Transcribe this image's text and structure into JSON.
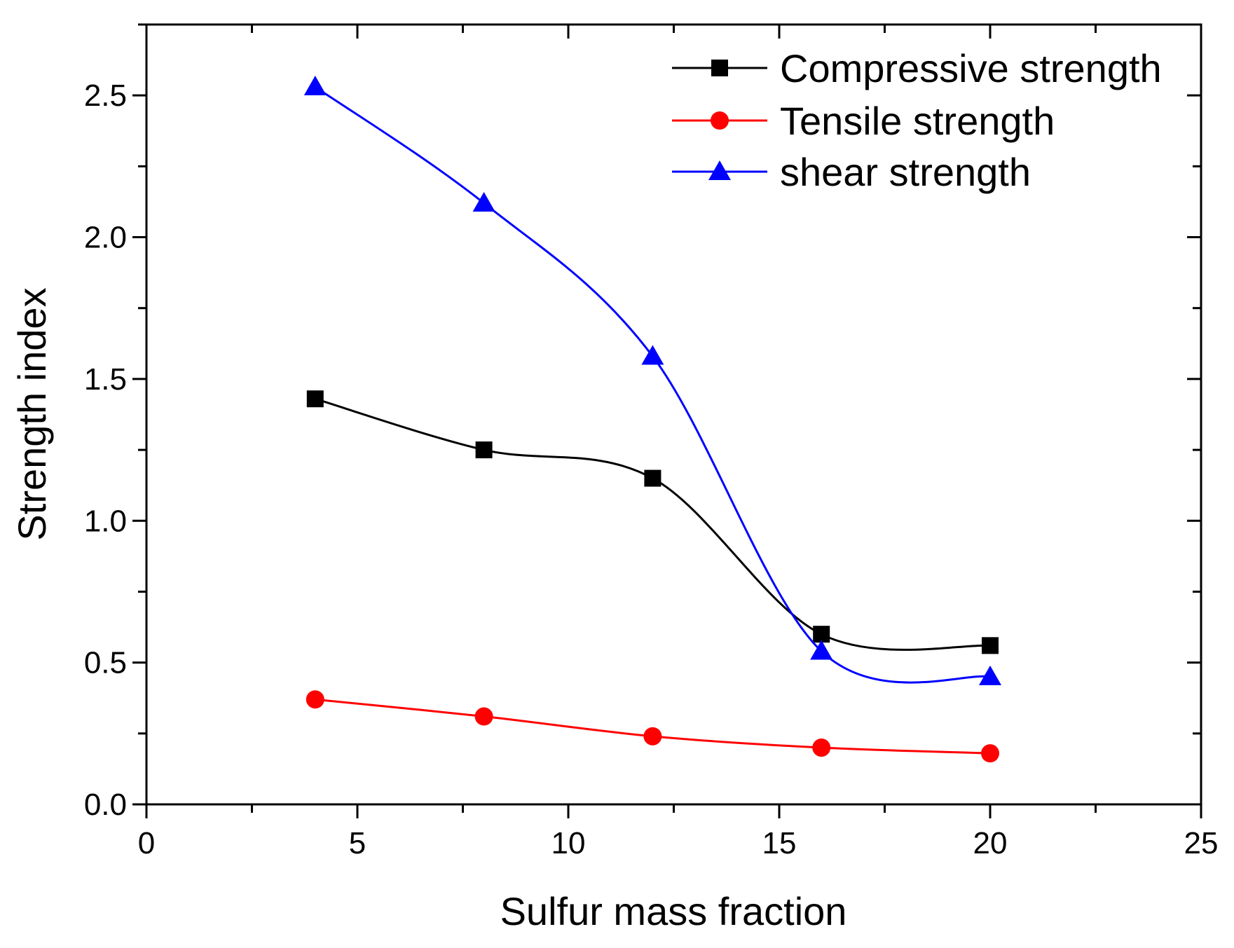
{
  "chart_data": {
    "type": "line",
    "title": "",
    "xlabel": "Sulfur mass fraction",
    "ylabel": "Strength index",
    "xlim": [
      0,
      25
    ],
    "ylim": [
      0,
      2.75
    ],
    "x_ticks": [
      0,
      5,
      10,
      15,
      20,
      25
    ],
    "y_ticks": [
      0.0,
      0.5,
      1.0,
      1.5,
      2.0,
      2.5
    ],
    "x_tick_labels": [
      "0",
      "5",
      "10",
      "15",
      "20",
      "25"
    ],
    "y_tick_labels": [
      "0.0",
      "0.5",
      "1.0",
      "1.5",
      "2.0",
      "2.5"
    ],
    "grid": false,
    "legend_position": "top-right",
    "x": [
      4,
      8,
      12,
      16,
      20
    ],
    "series": [
      {
        "name": "Compressive strength",
        "values": [
          1.43,
          1.25,
          1.15,
          0.6,
          0.56
        ],
        "color": "#000000",
        "marker": "square"
      },
      {
        "name": "Tensile strength",
        "values": [
          0.37,
          0.31,
          0.24,
          0.2,
          0.18
        ],
        "color": "#ff0000",
        "marker": "circle"
      },
      {
        "name": "shear strength",
        "values": [
          2.53,
          2.12,
          1.58,
          0.54,
          0.45
        ],
        "color": "#0000ff",
        "marker": "triangle"
      }
    ]
  }
}
